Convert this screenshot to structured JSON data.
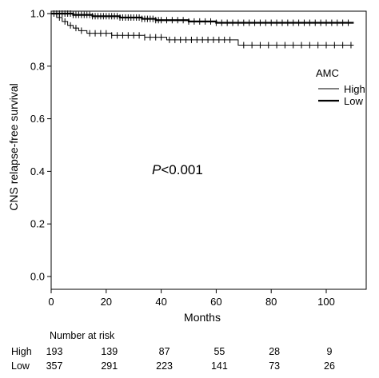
{
  "chart_data": {
    "type": "line",
    "subtype": "kaplan-meier",
    "title": "",
    "xlabel": "Months",
    "ylabel": "CNS relapse-free survival",
    "xlim": [
      0,
      112
    ],
    "ylim": [
      0.0,
      1.0
    ],
    "x_ticks": [
      0,
      20,
      40,
      60,
      80,
      100
    ],
    "y_ticks": [
      0.0,
      0.2,
      0.4,
      0.6,
      0.8,
      1.0
    ],
    "y_tick_labels": [
      "0.0",
      "0.2",
      "0.4",
      "0.6",
      "0.8",
      "1.0"
    ],
    "grid": false,
    "annotation": {
      "prefix": "P",
      "text": "<0.001",
      "x": 36,
      "y": 0.4
    },
    "legend": {
      "title": "AMC",
      "position": "right"
    },
    "series": [
      {
        "name": "High",
        "stroke": "thin",
        "steps": [
          [
            0,
            1.0
          ],
          [
            2,
            0.985
          ],
          [
            4,
            0.97
          ],
          [
            6,
            0.955
          ],
          [
            8,
            0.945
          ],
          [
            10,
            0.935
          ],
          [
            13,
            0.925
          ],
          [
            22,
            0.917
          ],
          [
            34,
            0.91
          ],
          [
            42,
            0.9
          ],
          [
            68,
            0.88
          ],
          [
            110,
            0.88
          ]
        ],
        "censored": [
          3,
          5,
          7,
          9,
          11,
          14,
          16,
          18,
          20,
          22,
          24,
          26,
          28,
          30,
          32,
          34,
          36,
          38,
          40,
          43,
          45,
          47,
          49,
          51,
          53,
          55,
          57,
          59,
          61,
          63,
          65,
          70,
          73,
          76,
          79,
          82,
          85,
          88,
          91,
          94,
          97,
          100,
          103,
          106,
          109
        ]
      },
      {
        "name": "Low",
        "stroke": "thick",
        "steps": [
          [
            0,
            1.0
          ],
          [
            8,
            0.995
          ],
          [
            15,
            0.99
          ],
          [
            25,
            0.985
          ],
          [
            33,
            0.98
          ],
          [
            38,
            0.975
          ],
          [
            50,
            0.97
          ],
          [
            60,
            0.965
          ],
          [
            110,
            0.965
          ]
        ],
        "censored": [
          1,
          2,
          3,
          4,
          5,
          6,
          7,
          8,
          9,
          10,
          11,
          12,
          13,
          14,
          15,
          16,
          17,
          18,
          19,
          20,
          21,
          22,
          23,
          24,
          25,
          26,
          27,
          28,
          29,
          30,
          31,
          32,
          33,
          34,
          35,
          36,
          37,
          38,
          39,
          40,
          42,
          44,
          46,
          48,
          50,
          52,
          54,
          56,
          58,
          60,
          62,
          64,
          66,
          68,
          70,
          72,
          74,
          76,
          78,
          80,
          82,
          84,
          86,
          88,
          90,
          92,
          94,
          96,
          98,
          100,
          102,
          104,
          106,
          108
        ]
      }
    ],
    "number_at_risk": {
      "title": "Number at risk",
      "times": [
        0,
        20,
        40,
        60,
        80,
        100
      ],
      "rows": [
        {
          "label": "High",
          "values": [
            193,
            139,
            87,
            55,
            28,
            9
          ]
        },
        {
          "label": "Low",
          "values": [
            357,
            291,
            223,
            141,
            73,
            26
          ]
        }
      ]
    }
  }
}
